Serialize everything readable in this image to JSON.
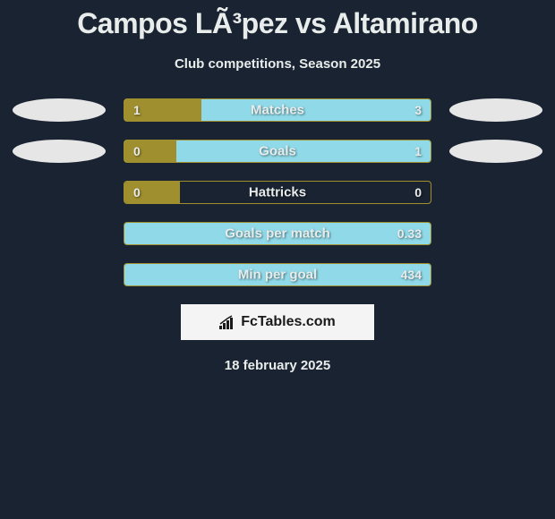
{
  "title": "Campos LÃ³pez vs Altamirano",
  "subtitle": "Club competitions, Season 2025",
  "date": "18 february 2025",
  "logo": "FcTables.com",
  "colors": {
    "background": "#1a2332",
    "text": "#e8ecea",
    "bar_left": "#a08f2f",
    "bar_right": "#8fd9e8",
    "oval": "#e6e6e6",
    "logo_bg": "#f4f4f4",
    "logo_text": "#1a1a1a"
  },
  "bars": [
    {
      "label": "Matches",
      "left_val": "1",
      "right_val": "3",
      "left_pct": 25,
      "right_color": "#8fd9e8",
      "show_ovals": true
    },
    {
      "label": "Goals",
      "left_val": "0",
      "right_val": "1",
      "left_pct": 17,
      "right_color": "#8fd9e8",
      "show_ovals": true
    },
    {
      "label": "Hattricks",
      "left_val": "0",
      "right_val": "0",
      "left_pct": 18,
      "right_color": "transparent",
      "show_ovals": false
    },
    {
      "label": "Goals per match",
      "left_val": "",
      "right_val": "0.33",
      "left_pct": 0,
      "right_color": "#8fd9e8",
      "show_ovals": false
    },
    {
      "label": "Min per goal",
      "left_val": "",
      "right_val": "434",
      "left_pct": 0,
      "right_color": "#8fd9e8",
      "show_ovals": false
    }
  ]
}
